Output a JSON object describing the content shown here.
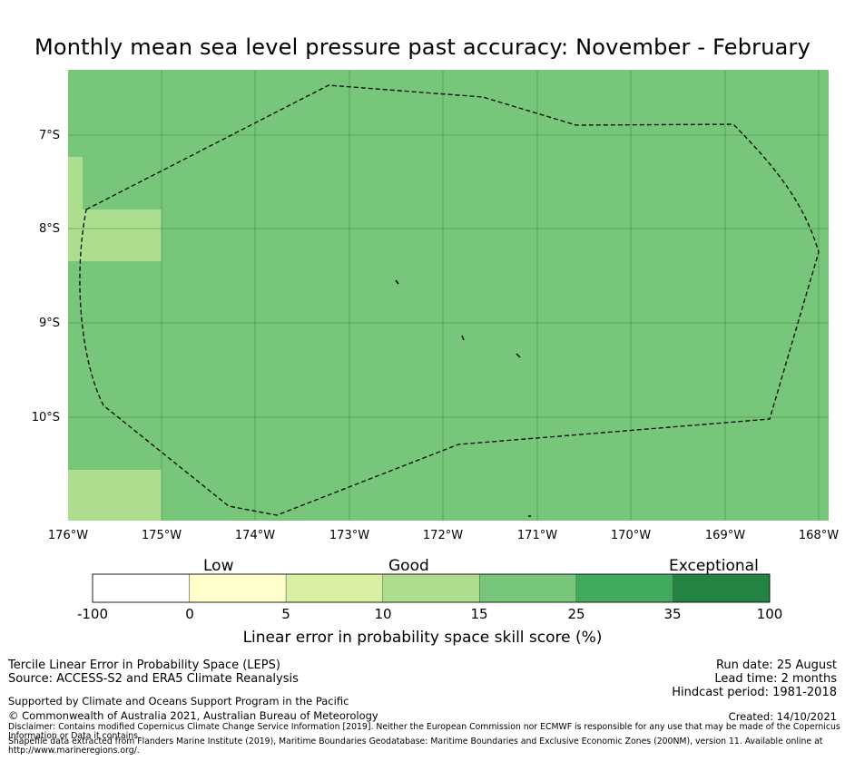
{
  "title": "Monthly mean sea level pressure past accuracy: November - February",
  "map": {
    "lon_ticks": [
      "176°W",
      "175°W",
      "174°W",
      "173°W",
      "172°W",
      "171°W",
      "170°W",
      "169°W",
      "168°W"
    ],
    "lat_ticks": [
      "7°S",
      "8°S",
      "9°S",
      "10°S"
    ],
    "lon_range": [
      -176,
      -168
    ],
    "lat_range": [
      -11.1,
      -6.3
    ],
    "colors": {
      "skill_15_25": "#78c679",
      "skill_10_15": "#addd8e",
      "boundary_line": "#000000"
    }
  },
  "colorbar": {
    "category_labels": [
      "Low",
      "Good",
      "Exceptional"
    ],
    "tick_labels": [
      "-100",
      "0",
      "5",
      "10",
      "15",
      "25",
      "35",
      "100"
    ],
    "colors": [
      "#ffffff",
      "#ffffcc",
      "#d9f0a3",
      "#addd8e",
      "#78c679",
      "#41ab5d",
      "#238443"
    ],
    "title": "Linear error in probability space skill score (%)"
  },
  "footer": {
    "method": "Tercile Linear Error in Probability Space (LEPS)",
    "source": "Source: ACCESS-S2 and ERA5 Climate Reanalysis",
    "run_date": "Run date: 25 August",
    "lead_time": "Lead time: 2 months",
    "hindcast": "Hindcast period: 1981-2018",
    "supported": "Supported by Climate and Oceans Support Program in the Pacific",
    "copyright": "© Commonwealth of Australia 2021, Australian Bureau of Meteorology",
    "created": "Created: 14/10/2021",
    "disclaimer_1": "Disclaimer: Contains modified Copernicus Climate Change Service Information [2019]. Neither the European Commission nor ECMWF is responsible for any use that may be made of the Copernicus",
    "disclaimer_2": "Information or Data it contains.",
    "shapefile_1": "Shapefile data extracted from Flanders Marine Institute (2019), Maritime Boundaries Geodatabase: Maritime Boundaries and Exclusive Economic Zones (200NM), version 11. Available online at",
    "shapefile_2": "http://www.marineregions.org/."
  }
}
